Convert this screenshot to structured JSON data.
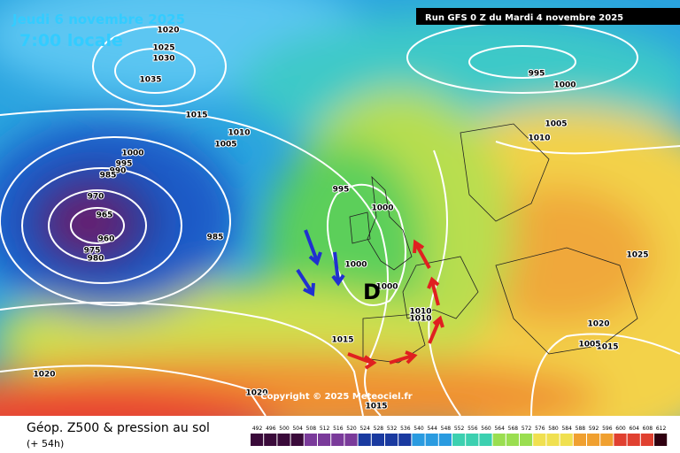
{
  "header": {
    "date": "Jeudi 6 novembre 2025",
    "time": "7:00 locale",
    "run": "Run GFS 0 Z du Mardi 4 novembre 2025"
  },
  "isobar_labels": [
    "1020",
    "1025",
    "1030",
    "1035",
    "1015",
    "1010",
    "1005",
    "1000",
    "995",
    "990",
    "985",
    "970",
    "965",
    "960",
    "975",
    "980",
    "985",
    "995",
    "1000",
    "1000",
    "1000",
    "1015",
    "1020",
    "1020",
    "1015",
    "995",
    "1000",
    "1005",
    "1010",
    "1025",
    "1020",
    "1015",
    "1010",
    "1005",
    "1010"
  ],
  "low_marker": "D",
  "copyright": "Copyright © 2025 Meteociel.fr",
  "legend": {
    "title": "Géop. Z500 & pression au sol",
    "lead": "(+ 54h)",
    "ticks": [
      492,
      496,
      500,
      504,
      508,
      512,
      516,
      520,
      524,
      528,
      532,
      536,
      540,
      544,
      548,
      552,
      556,
      560,
      564,
      568,
      572,
      576,
      580,
      584,
      588,
      592,
      596,
      600,
      604,
      608,
      612
    ]
  }
}
